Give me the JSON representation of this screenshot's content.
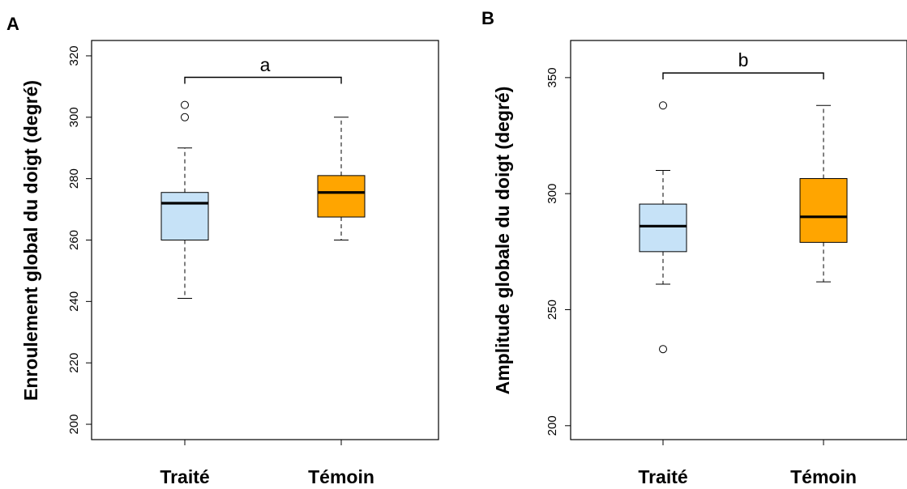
{
  "chart_data": [
    {
      "type": "boxplot",
      "panel": "A",
      "ylabel": "Enroulement global du doigt (degré)",
      "ylim": [
        195,
        325
      ],
      "yticks": [
        200,
        220,
        240,
        260,
        280,
        300,
        320
      ],
      "categories": [
        "Traité",
        "Témoin"
      ],
      "boxes": [
        {
          "category": "Traité",
          "whisker_low": 241,
          "q1": 260,
          "median": 272,
          "q3": 275.5,
          "whisker_high": 290,
          "outliers": [
            300,
            304
          ],
          "color": "#c6e2f7"
        },
        {
          "category": "Témoin",
          "whisker_low": 260,
          "q1": 267.5,
          "median": 275.5,
          "q3": 281,
          "whisker_high": 300,
          "outliers": [],
          "color": "#ffa500"
        }
      ],
      "significance": {
        "label": "a",
        "y": 313
      }
    },
    {
      "type": "boxplot",
      "panel": "B",
      "ylabel": "Amplitude globale du doigt (degré)",
      "ylim": [
        194,
        366
      ],
      "yticks": [
        200,
        250,
        300,
        350
      ],
      "categories": [
        "Traité",
        "Témoin"
      ],
      "boxes": [
        {
          "category": "Traité",
          "whisker_low": 261,
          "q1": 275,
          "median": 286,
          "q3": 295.5,
          "whisker_high": 310,
          "outliers": [
            233,
            338
          ],
          "color": "#c6e2f7"
        },
        {
          "category": "Témoin",
          "whisker_low": 262,
          "q1": 279,
          "median": 290,
          "q3": 306.5,
          "whisker_high": 338,
          "outliers": [],
          "color": "#ffa500"
        }
      ],
      "significance": {
        "label": "b",
        "y": 352
      }
    }
  ]
}
